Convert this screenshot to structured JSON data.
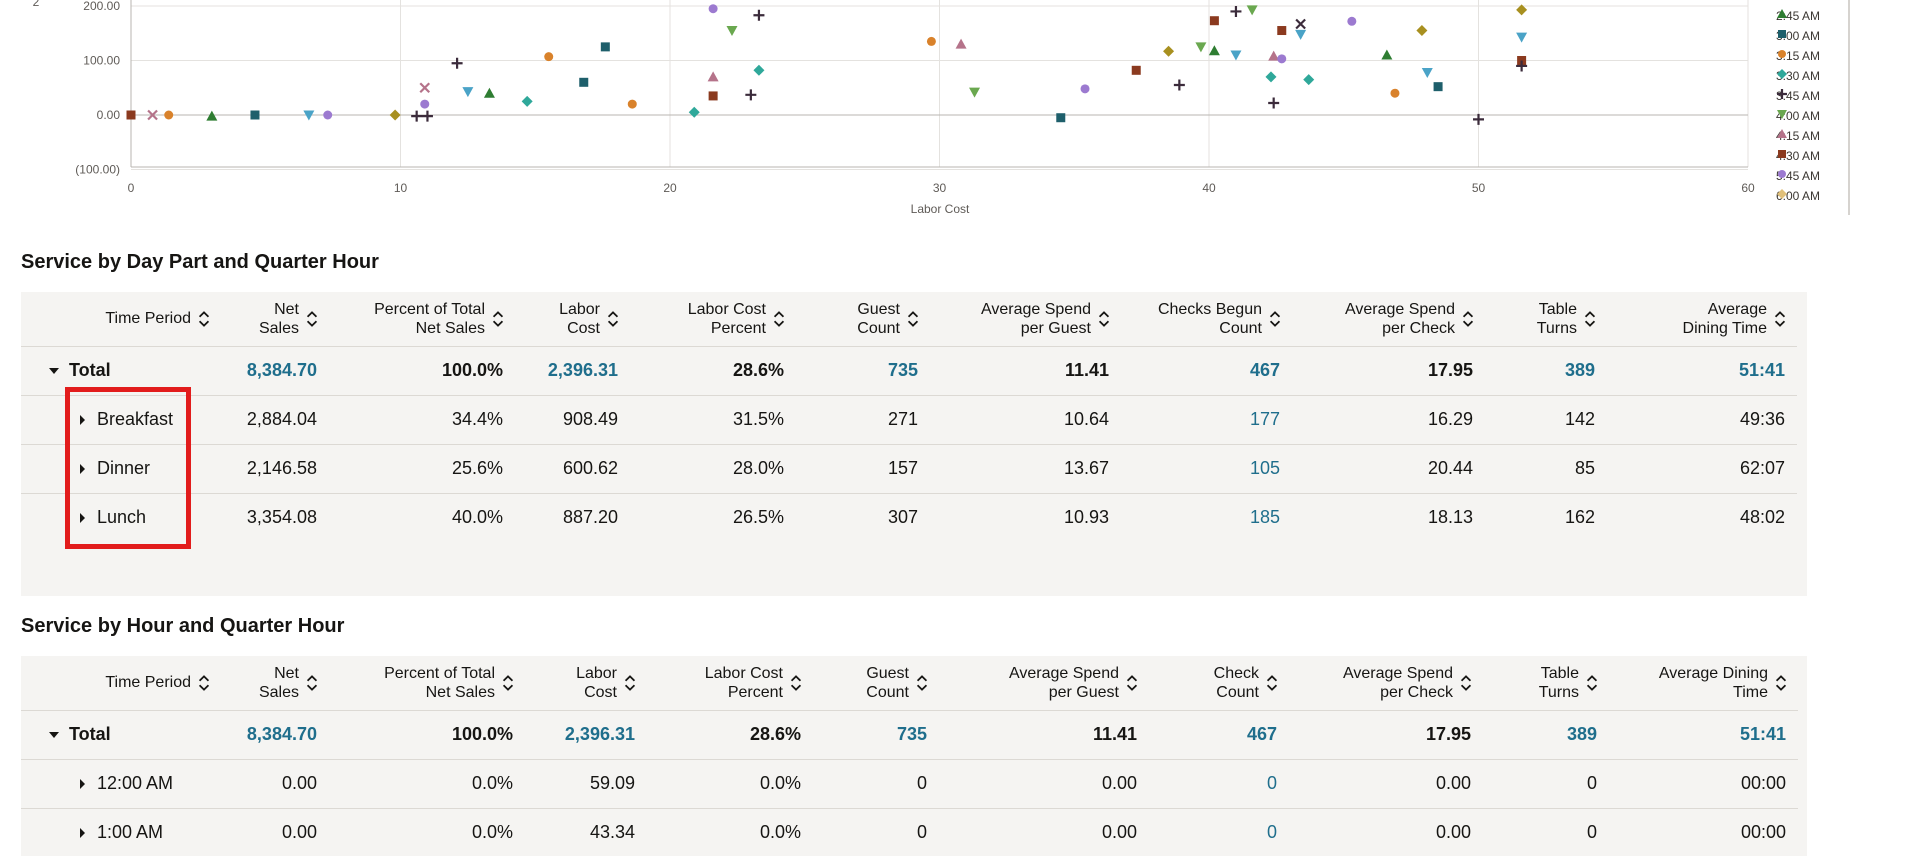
{
  "chart": {
    "type": "scatter",
    "xlabel": "Labor Cost",
    "x_ticks": [
      "0",
      "10",
      "20",
      "30",
      "40",
      "50",
      "60"
    ],
    "y_ticks": [
      "200.00",
      "100.00",
      "0.00",
      "(100.00)"
    ],
    "ylabel_fragment": "2",
    "legend": [
      {
        "label": "2:45 AM",
        "color": "#2e7d32",
        "shape": "triangle"
      },
      {
        "label": "3:00 AM",
        "color": "#1e5f6b",
        "shape": "square"
      },
      {
        "label": "3:15 AM",
        "color": "#d9822b",
        "shape": "circle"
      },
      {
        "label": "3:30 AM",
        "color": "#2fa89a",
        "shape": "diamond"
      },
      {
        "label": "3:45 AM",
        "color": "#3b2b3b",
        "shape": "plus"
      },
      {
        "label": "4:00 AM",
        "color": "#6aa84f",
        "shape": "triangle-down"
      },
      {
        "label": "4:15 AM",
        "color": "#b5738a",
        "shape": "triangle"
      },
      {
        "label": "4:30 AM",
        "color": "#8b3a1f",
        "shape": "square"
      },
      {
        "label": "5:45 AM",
        "color": "#9c7ad0",
        "shape": "circle"
      },
      {
        "label": "6:00 AM",
        "color": "#e0c07a",
        "shape": "diamond"
      }
    ],
    "chart_data": {
      "type": "scatter",
      "xlabel": "Labor Cost",
      "xlim": [
        0,
        60
      ],
      "ylim": [
        -100,
        200
      ],
      "points": [
        {
          "x": 0,
          "y": 0,
          "shape": "square",
          "color": "#8b3a1f"
        },
        {
          "x": 0.8,
          "y": 0,
          "shape": "x",
          "color": "#b5738a"
        },
        {
          "x": 1.4,
          "y": 0,
          "shape": "circle",
          "color": "#d9822b"
        },
        {
          "x": 3,
          "y": -2,
          "shape": "triangle",
          "color": "#2e7d32"
        },
        {
          "x": 4.6,
          "y": 0,
          "shape": "square",
          "color": "#1e5f6b"
        },
        {
          "x": 6.6,
          "y": 0,
          "shape": "triangle-down",
          "color": "#4aa3c7"
        },
        {
          "x": 7.3,
          "y": 0,
          "shape": "circle",
          "color": "#9c7ad0"
        },
        {
          "x": 9.8,
          "y": 0,
          "shape": "diamond",
          "color": "#a89020"
        },
        {
          "x": 10.6,
          "y": -2,
          "shape": "plus",
          "color": "#3b2b3b"
        },
        {
          "x": 10.9,
          "y": 20,
          "shape": "circle",
          "color": "#9c7ad0"
        },
        {
          "x": 10.9,
          "y": 50,
          "shape": "x",
          "color": "#b5738a"
        },
        {
          "x": 11,
          "y": -2,
          "shape": "plus",
          "color": "#3b2b3b"
        },
        {
          "x": 12.1,
          "y": 95,
          "shape": "plus",
          "color": "#3b2b3b"
        },
        {
          "x": 12.5,
          "y": 43,
          "shape": "triangle-down",
          "color": "#4aa3c7"
        },
        {
          "x": 13.3,
          "y": 40,
          "shape": "triangle",
          "color": "#2e7d32"
        },
        {
          "x": 14.7,
          "y": 25,
          "shape": "diamond",
          "color": "#2fa89a"
        },
        {
          "x": 15.5,
          "y": 107,
          "shape": "circle",
          "color": "#d9822b"
        },
        {
          "x": 16.8,
          "y": 60,
          "shape": "square",
          "color": "#1e5f6b"
        },
        {
          "x": 17.6,
          "y": 125,
          "shape": "square",
          "color": "#1e5f6b"
        },
        {
          "x": 18.6,
          "y": 20,
          "shape": "circle",
          "color": "#d9822b"
        },
        {
          "x": 20.9,
          "y": 5,
          "shape": "diamond",
          "color": "#2fa89a"
        },
        {
          "x": 21.6,
          "y": 195,
          "shape": "circle",
          "color": "#9c7ad0"
        },
        {
          "x": 21.6,
          "y": 70,
          "shape": "triangle",
          "color": "#b5738a"
        },
        {
          "x": 21.6,
          "y": 35,
          "shape": "square",
          "color": "#8b3a1f"
        },
        {
          "x": 22.3,
          "y": 155,
          "shape": "triangle-down",
          "color": "#6aa84f"
        },
        {
          "x": 23,
          "y": 37,
          "shape": "plus",
          "color": "#3b2b3b"
        },
        {
          "x": 23.3,
          "y": 82,
          "shape": "diamond",
          "color": "#2fa89a"
        },
        {
          "x": 23.3,
          "y": 183,
          "shape": "plus",
          "color": "#3b2b3b"
        },
        {
          "x": 29.7,
          "y": 135,
          "shape": "circle",
          "color": "#d9822b"
        },
        {
          "x": 30.8,
          "y": 130,
          "shape": "triangle",
          "color": "#b5738a"
        },
        {
          "x": 31.3,
          "y": 42,
          "shape": "triangle-down",
          "color": "#6aa84f"
        },
        {
          "x": 34.5,
          "y": -5,
          "shape": "square",
          "color": "#1e5f6b"
        },
        {
          "x": 35.4,
          "y": 48,
          "shape": "circle",
          "color": "#9c7ad0"
        },
        {
          "x": 37.3,
          "y": 82,
          "shape": "square",
          "color": "#8b3a1f"
        },
        {
          "x": 38.5,
          "y": 117,
          "shape": "diamond",
          "color": "#a89020"
        },
        {
          "x": 38.9,
          "y": 55,
          "shape": "plus",
          "color": "#3b2b3b"
        },
        {
          "x": 39.7,
          "y": 125,
          "shape": "triangle-down",
          "color": "#6aa84f"
        },
        {
          "x": 40.2,
          "y": 173,
          "shape": "square",
          "color": "#8b3a1f"
        },
        {
          "x": 40.2,
          "y": 118,
          "shape": "triangle",
          "color": "#2e7d32"
        },
        {
          "x": 41,
          "y": 190,
          "shape": "plus",
          "color": "#3b2b3b"
        },
        {
          "x": 41,
          "y": 110,
          "shape": "triangle-down",
          "color": "#4aa3c7"
        },
        {
          "x": 41.6,
          "y": 193,
          "shape": "triangle-down",
          "color": "#6aa84f"
        },
        {
          "x": 42.3,
          "y": 70,
          "shape": "diamond",
          "color": "#2fa89a"
        },
        {
          "x": 42.4,
          "y": 108,
          "shape": "triangle",
          "color": "#b5738a"
        },
        {
          "x": 42.4,
          "y": 22,
          "shape": "plus",
          "color": "#3b2b3b"
        },
        {
          "x": 42.7,
          "y": 103,
          "shape": "circle",
          "color": "#9c7ad0"
        },
        {
          "x": 42.7,
          "y": 155,
          "shape": "square",
          "color": "#8b3a1f"
        },
        {
          "x": 43.4,
          "y": 167,
          "shape": "x",
          "color": "#3b2b3b"
        },
        {
          "x": 43.4,
          "y": 148,
          "shape": "triangle-down",
          "color": "#4aa3c7"
        },
        {
          "x": 43.7,
          "y": 65,
          "shape": "diamond",
          "color": "#2fa89a"
        },
        {
          "x": 45.3,
          "y": 172,
          "shape": "circle",
          "color": "#9c7ad0"
        },
        {
          "x": 46.6,
          "y": 110,
          "shape": "triangle",
          "color": "#2e7d32"
        },
        {
          "x": 46.9,
          "y": 40,
          "shape": "circle",
          "color": "#d9822b"
        },
        {
          "x": 47.9,
          "y": 155,
          "shape": "diamond",
          "color": "#a89020"
        },
        {
          "x": 48.1,
          "y": 78,
          "shape": "triangle-down",
          "color": "#4aa3c7"
        },
        {
          "x": 48.5,
          "y": 52,
          "shape": "square",
          "color": "#1e5f6b"
        },
        {
          "x": 50,
          "y": -8,
          "shape": "plus",
          "color": "#3b2b3b"
        },
        {
          "x": 51.6,
          "y": 193,
          "shape": "diamond",
          "color": "#a89020"
        },
        {
          "x": 51.6,
          "y": 143,
          "shape": "triangle-down",
          "color": "#4aa3c7"
        },
        {
          "x": 51.6,
          "y": 100,
          "shape": "square",
          "color": "#8b3a1f"
        },
        {
          "x": 51.6,
          "y": 90,
          "shape": "plus",
          "color": "#3b2b3b"
        }
      ]
    }
  },
  "section1": {
    "title": "Service by Day Part and Quarter Hour",
    "headers": [
      [
        "Time Period"
      ],
      [
        "Net",
        "Sales"
      ],
      [
        "Percent of Total",
        "Net Sales"
      ],
      [
        "Labor",
        "Cost"
      ],
      [
        "Labor Cost",
        "Percent"
      ],
      [
        "Guest",
        "Count"
      ],
      [
        "Average Spend",
        "per Guest"
      ],
      [
        "Checks Begun",
        "Count"
      ],
      [
        "Average Spend",
        "per Check"
      ],
      [
        "Table",
        "Turns"
      ],
      [
        "Average",
        "Dining Time"
      ]
    ],
    "total": [
      "Total",
      "8,384.70",
      "100.0%",
      "2,396.31",
      "28.6%",
      "735",
      "11.41",
      "467",
      "17.95",
      "389",
      "51:41"
    ],
    "rows": [
      [
        "Breakfast",
        "2,884.04",
        "34.4%",
        "908.49",
        "31.5%",
        "271",
        "10.64",
        "177",
        "16.29",
        "142",
        "49:36"
      ],
      [
        "Dinner",
        "2,146.58",
        "25.6%",
        "600.62",
        "28.0%",
        "157",
        "13.67",
        "105",
        "20.44",
        "85",
        "62:07"
      ],
      [
        "Lunch",
        "3,354.08",
        "40.0%",
        "887.20",
        "26.5%",
        "307",
        "10.93",
        "185",
        "18.13",
        "162",
        "48:02"
      ]
    ]
  },
  "section2": {
    "title": "Service by Hour and Quarter Hour",
    "headers": [
      [
        "Time Period"
      ],
      [
        "Net",
        "Sales"
      ],
      [
        "Percent of Total",
        "Net Sales"
      ],
      [
        "Labor",
        "Cost"
      ],
      [
        "Labor Cost",
        "Percent"
      ],
      [
        "Guest",
        "Count"
      ],
      [
        "Average Spend",
        "per Guest"
      ],
      [
        "Check",
        "Count"
      ],
      [
        "Average Spend",
        "per Check"
      ],
      [
        "Table",
        "Turns"
      ],
      [
        "Average Dining",
        "Time"
      ]
    ],
    "total": [
      "Total",
      "8,384.70",
      "100.0%",
      "2,396.31",
      "28.6%",
      "735",
      "11.41",
      "467",
      "17.95",
      "389",
      "51:41"
    ],
    "rows": [
      [
        "12:00 AM",
        "0.00",
        "0.0%",
        "59.09",
        "0.0%",
        "0",
        "0.00",
        "0",
        "0.00",
        "0",
        "00:00"
      ],
      [
        "1:00 AM",
        "0.00",
        "0.0%",
        "43.34",
        "0.0%",
        "0",
        "0.00",
        "0",
        "0.00",
        "0",
        "00:00"
      ]
    ]
  }
}
